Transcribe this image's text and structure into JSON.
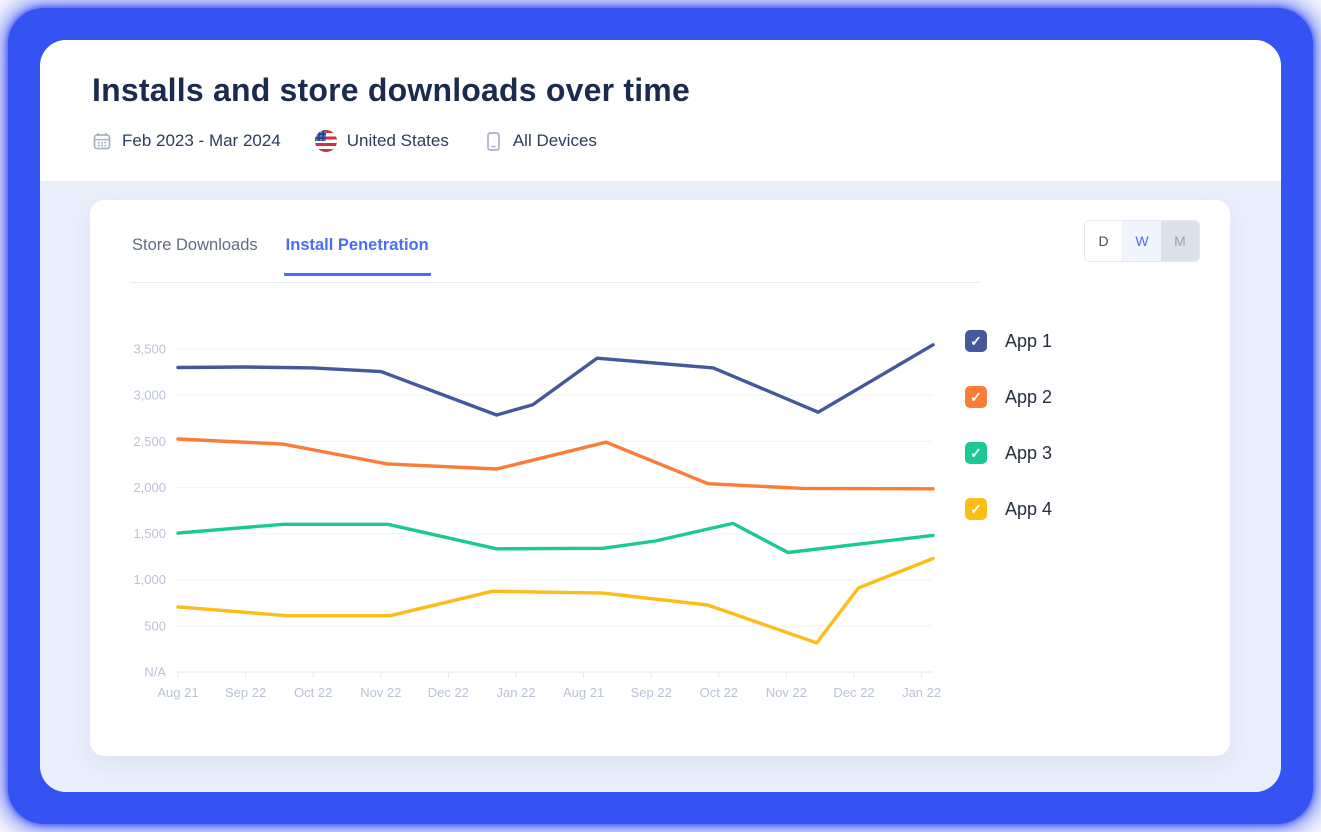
{
  "header": {
    "title": "Installs and store downloads over time",
    "date_range": "Feb 2023 - Mar 2024",
    "country": "United States",
    "devices": "All Devices"
  },
  "card": {
    "tabs": [
      {
        "label": "Store Downloads",
        "active": false
      },
      {
        "label": "Install Penetration",
        "active": true
      }
    ],
    "granularity": {
      "options": [
        "D",
        "W",
        "M"
      ],
      "selected": "W"
    }
  },
  "colors": {
    "frame_blue": "#3552F2",
    "page_background": "#E9EEFB",
    "accent_blue": "#4A6CF8",
    "axis_label": "#B9C2D6",
    "gridline": "#F0F2F7"
  },
  "chart_data": {
    "type": "line",
    "title": "",
    "xlabel": "",
    "ylabel": "",
    "ylim": [
      0,
      3500
    ],
    "grid": "horizontal",
    "legend_position": "right",
    "x_labels": [
      "Aug 21",
      "Sep 22",
      "Oct 22",
      "Nov 22",
      "Dec 22",
      "Jan 22",
      "Aug 21",
      "Sep 22",
      "Oct 22",
      "Nov 22",
      "Dec 22",
      "Jan 22"
    ],
    "y_ticks": [
      {
        "label": "3,500",
        "value": 3500
      },
      {
        "label": "3,000",
        "value": 3000
      },
      {
        "label": "2,500",
        "value": 2500
      },
      {
        "label": "2,000",
        "value": 2000
      },
      {
        "label": "1,500",
        "value": 1500
      },
      {
        "label": "1,000",
        "value": 1000
      },
      {
        "label": "500",
        "value": 500
      },
      {
        "label": "N/A",
        "value": 0
      }
    ],
    "series": [
      {
        "name": "App 1",
        "color": "#45589B",
        "checked": true,
        "points": [
          [
            0.0,
            3300
          ],
          [
            0.089,
            3305
          ],
          [
            0.179,
            3295
          ],
          [
            0.269,
            3255
          ],
          [
            0.422,
            2785
          ],
          [
            0.47,
            2895
          ],
          [
            0.555,
            3400
          ],
          [
            0.709,
            3295
          ],
          [
            0.848,
            2815
          ],
          [
            1.0,
            3545
          ]
        ]
      },
      {
        "name": "App 2",
        "color": "#F97D38",
        "checked": true,
        "points": [
          [
            0.0,
            2525
          ],
          [
            0.139,
            2470
          ],
          [
            0.277,
            2255
          ],
          [
            0.422,
            2200
          ],
          [
            0.567,
            2490
          ],
          [
            0.702,
            2040
          ],
          [
            0.828,
            1990
          ],
          [
            1.0,
            1985
          ]
        ]
      },
      {
        "name": "App 3",
        "color": "#1CC995",
        "checked": true,
        "points": [
          [
            0.0,
            1505
          ],
          [
            0.139,
            1600
          ],
          [
            0.278,
            1600
          ],
          [
            0.422,
            1335
          ],
          [
            0.563,
            1340
          ],
          [
            0.632,
            1420
          ],
          [
            0.735,
            1610
          ],
          [
            0.808,
            1295
          ],
          [
            1.0,
            1480
          ]
        ]
      },
      {
        "name": "App 4",
        "color": "#FBBD18",
        "checked": true,
        "points": [
          [
            0.0,
            705
          ],
          [
            0.144,
            610
          ],
          [
            0.281,
            610
          ],
          [
            0.416,
            875
          ],
          [
            0.563,
            855
          ],
          [
            0.702,
            725
          ],
          [
            0.846,
            315
          ],
          [
            0.901,
            910
          ],
          [
            1.0,
            1230
          ]
        ]
      }
    ]
  }
}
